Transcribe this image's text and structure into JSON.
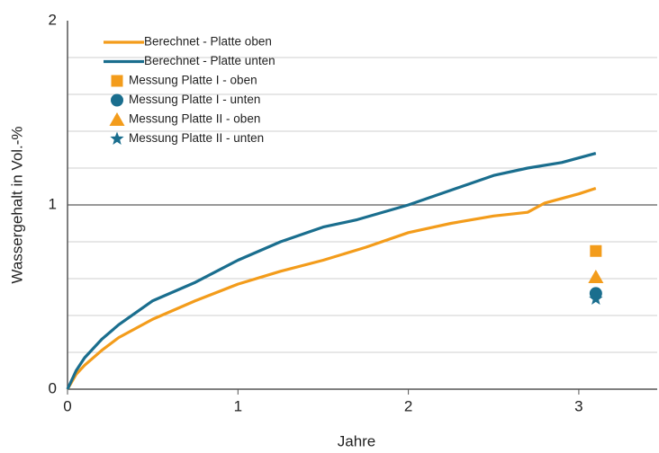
{
  "chart_data": {
    "type": "line",
    "xlabel": "Jahre",
    "ylabel": "Wassergehalt in Vol.-%",
    "xlim": [
      0,
      3.46
    ],
    "xticks": [
      0,
      1,
      2,
      3
    ],
    "ylim": [
      0,
      2
    ],
    "yticks": [
      0,
      1,
      2
    ],
    "minor_yticks": [
      0.2,
      0.4,
      0.6,
      0.8,
      1.2,
      1.4,
      1.6,
      1.8
    ],
    "grid": true,
    "legend": "upper left",
    "series": [
      {
        "name": "Berechnet - Platte oben",
        "color": "#f39c1b",
        "x": [
          0,
          0.05,
          0.1,
          0.2,
          0.3,
          0.5,
          0.75,
          1,
          1.25,
          1.5,
          1.75,
          2,
          2.25,
          2.5,
          2.7,
          2.8,
          3,
          3.1
        ],
        "values": [
          0,
          0.08,
          0.13,
          0.21,
          0.28,
          0.38,
          0.48,
          0.57,
          0.64,
          0.7,
          0.77,
          0.85,
          0.9,
          0.94,
          0.96,
          1.01,
          1.06,
          1.09
        ]
      },
      {
        "name": "Berechnet - Platte unten",
        "color": "#1a6e8e",
        "x": [
          0,
          0.05,
          0.1,
          0.2,
          0.3,
          0.5,
          0.75,
          1,
          1.25,
          1.5,
          1.7,
          2,
          2.25,
          2.5,
          2.7,
          2.9,
          3.1
        ],
        "values": [
          0,
          0.1,
          0.17,
          0.27,
          0.35,
          0.48,
          0.58,
          0.7,
          0.8,
          0.88,
          0.92,
          1.0,
          1.08,
          1.16,
          1.2,
          1.23,
          1.28
        ]
      },
      {
        "name": "Messung Platte I - oben",
        "color": "#f39c1b",
        "marker": "square",
        "x": [
          3.1
        ],
        "values": [
          0.75
        ]
      },
      {
        "name": "Messung Platte I - unten",
        "color": "#1a6e8e",
        "marker": "circle",
        "x": [
          3.1
        ],
        "values": [
          0.52
        ]
      },
      {
        "name": "Messung Platte II - oben",
        "color": "#f39c1b",
        "marker": "triangle",
        "x": [
          3.1
        ],
        "values": [
          0.61
        ]
      },
      {
        "name": "Messung Platte II - unten",
        "color": "#1a6e8e",
        "marker": "star",
        "x": [
          3.1
        ],
        "values": [
          0.49
        ]
      }
    ]
  }
}
